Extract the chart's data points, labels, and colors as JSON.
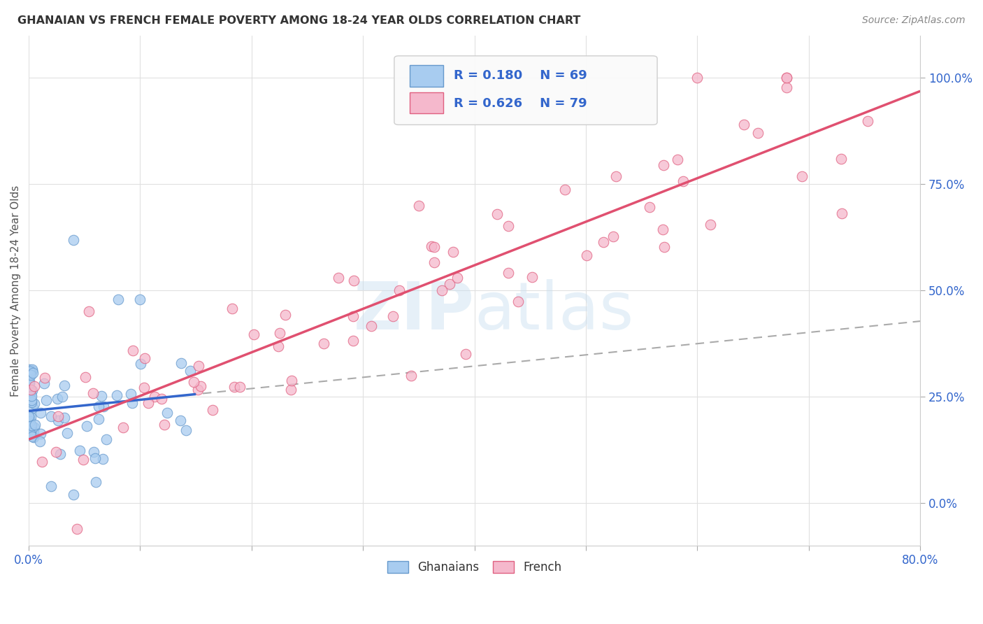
{
  "title": "GHANAIAN VS FRENCH FEMALE POVERTY AMONG 18-24 YEAR OLDS CORRELATION CHART",
  "source": "Source: ZipAtlas.com",
  "ylabel": "Female Poverty Among 18-24 Year Olds",
  "xlim": [
    0.0,
    0.8
  ],
  "ylim": [
    -0.1,
    1.1
  ],
  "ghanaian_fill": "#A8CCF0",
  "ghanaian_edge": "#6699CC",
  "french_fill": "#F5B8CC",
  "french_edge": "#E06080",
  "blue_line_color": "#3366CC",
  "pink_line_color": "#E05070",
  "dashed_line_color": "#AAAAAA",
  "r_ghanaian": 0.18,
  "n_ghanaian": 69,
  "r_french": 0.626,
  "n_french": 79,
  "watermark": "ZIPatlas",
  "background_color": "#FFFFFF",
  "legend_text_color": "#3366CC",
  "tick_color": "#3366CC",
  "ylabel_color": "#555555",
  "title_color": "#333333",
  "source_color": "#888888",
  "grid_color": "#E0E0E0"
}
